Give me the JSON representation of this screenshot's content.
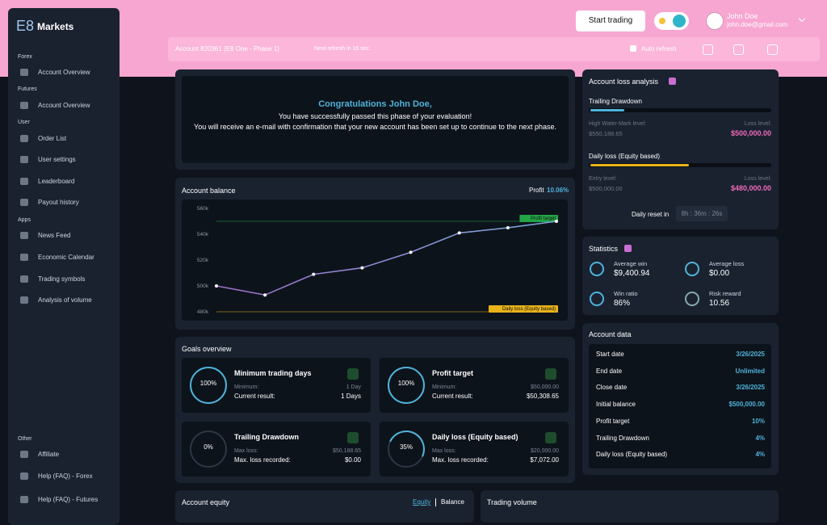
{
  "sidebar": {
    "logo": "E8",
    "brand": "Markets",
    "sections": [
      {
        "title": "Forex",
        "items": [
          "Account Overview"
        ]
      },
      {
        "title": "Futures",
        "items": [
          "Account Overview"
        ]
      },
      {
        "title": "User",
        "items": [
          "Order List",
          "User settings",
          "Leaderboard",
          "Payout history"
        ]
      },
      {
        "title": "Apps",
        "items": [
          "News Feed",
          "Economic Calendar",
          "Trading symbols",
          "Analysis of volume"
        ]
      },
      {
        "title": "Other",
        "items": [
          "Affiliate",
          "Help (FAQ) - Forex",
          "Help (FAQ) - Futures"
        ]
      }
    ]
  },
  "header": {
    "start_trading": "Start trading",
    "user_name": "John Doe",
    "user_email": "john.doe@gmail.com",
    "account": "Account 820361 (E8 One - Phase 1)",
    "refresh": "Next refresh in 16 sec.",
    "auto_refresh": "Auto refresh"
  },
  "congrats": {
    "title": "Congratulations John Doe,",
    "lines": [
      "You have successfully passed this phase of your evaluation!",
      "You will receive an e-mail with confirmation that your new account has been set up to continue to the next phase."
    ]
  },
  "chart_data": {
    "type": "line",
    "title": "Account balance",
    "profit_label": "Profit",
    "profit_value": "10.06%",
    "values": [
      500000,
      493000,
      509000,
      514000,
      526000,
      541000,
      545000,
      550000
    ],
    "color": "#7aa8d8",
    "ylim": [
      480000,
      560000
    ],
    "yticks": [
      {
        "value": 480000,
        "label": "480k"
      },
      {
        "value": 500000,
        "label": "500k"
      },
      {
        "value": 520000,
        "label": "520k"
      },
      {
        "value": 540000,
        "label": "540k"
      },
      {
        "value": 560000,
        "label": "560k"
      }
    ],
    "annotations": [
      {
        "label": "Profit target",
        "value": 550000,
        "color": "#22a447"
      },
      {
        "label": "Daily loss (Equity based)",
        "value": 480000,
        "color": "#e8b21a"
      }
    ]
  },
  "goals": {
    "title": "Goals overview",
    "items": [
      {
        "title": "Minimum trading days",
        "progress": "100%",
        "row1_label": "Minimum:",
        "row1_value": "1 Day",
        "row2_label": "Current result:",
        "row2_value": "1 Days"
      },
      {
        "title": "Profit target",
        "progress": "100%",
        "row1_label": "Minimum:",
        "row1_value": "$50,000.00",
        "row2_label": "Current result:",
        "row2_value": "$50,308.65"
      },
      {
        "title": "Trailing Drawdown",
        "progress": "0%",
        "row1_label": "Max loss:",
        "row1_value": "$50,188.65",
        "row2_label": "Max. loss recorded:",
        "row2_value": "$0.00"
      },
      {
        "title": "Daily loss (Equity based)",
        "progress": "35%",
        "row1_label": "Max loss:",
        "row1_value": "$20,000.00",
        "row2_label": "Max. loss recorded:",
        "row2_value": "$7,072.00"
      }
    ]
  },
  "loss_analysis": {
    "title": "Account loss analysis",
    "trailing": {
      "title": "Trailing Drawdown",
      "left_label": "High Water-Mark level:",
      "left_value": "$550,188.65",
      "right_label": "Loss level:",
      "right_value": "$500,000.00"
    },
    "daily": {
      "title": "Daily loss (Equity based)",
      "left_label": "Entry level:",
      "left_value": "$500,000.00",
      "right_label": "Loss level:",
      "right_value": "$480,000.00"
    },
    "reset_label": "Daily reset in",
    "reset_value": "8h : 36m : 26s"
  },
  "statistics": {
    "title": "Statistics",
    "items": [
      {
        "label": "Average win",
        "value": "$9,400.94"
      },
      {
        "label": "Average loss",
        "value": "$0.00"
      },
      {
        "label": "Win ratio",
        "value": "86%"
      },
      {
        "label": "Risk reward",
        "value": "10.56"
      }
    ]
  },
  "account_data": {
    "title": "Account data",
    "rows": [
      [
        "Start date",
        "3/26/2025"
      ],
      [
        "End date",
        "Unlimited"
      ],
      [
        "Close date",
        "3/26/2025"
      ],
      [
        "Initial balance",
        "$500,000.00"
      ],
      [
        "Profit target",
        "10%"
      ],
      [
        "Trailing Drawdown",
        "4%"
      ],
      [
        "Daily loss (Equity based)",
        "4%"
      ]
    ]
  },
  "equity": {
    "title": "Account equity",
    "tab_equity": "Equity",
    "tab_balance": "Balance"
  },
  "volume": {
    "title": "Trading volume"
  }
}
